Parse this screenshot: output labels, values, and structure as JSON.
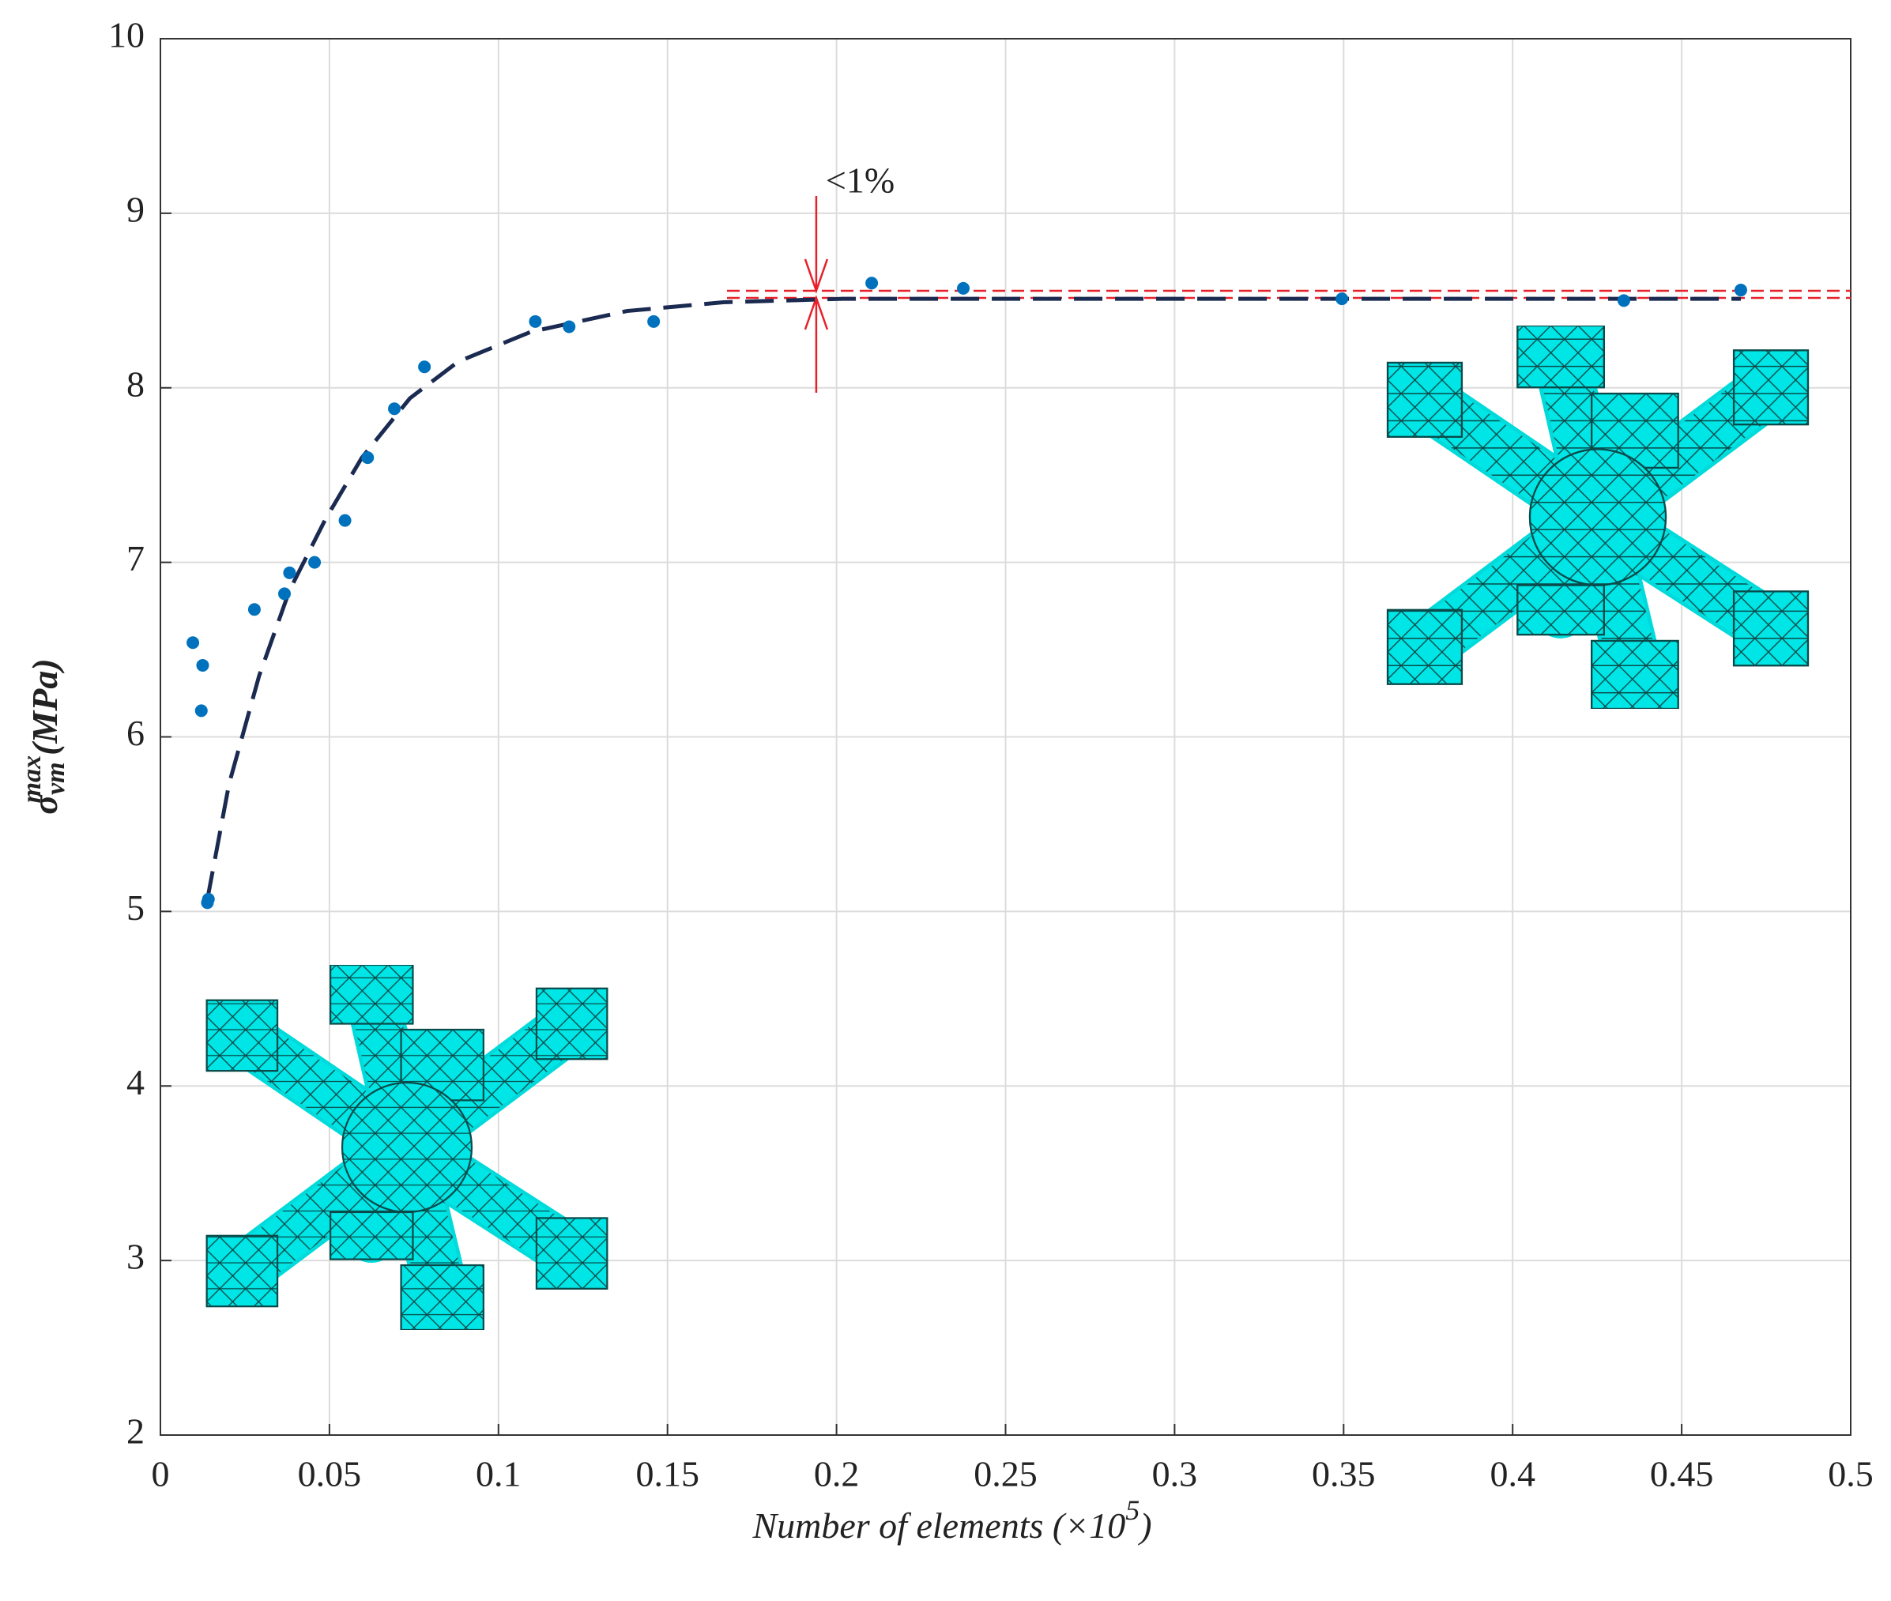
{
  "chart_data": {
    "type": "scatter",
    "x": [
      0.0096,
      0.0125,
      0.0121,
      0.0139,
      0.0142,
      0.0278,
      0.0367,
      0.0382,
      0.0456,
      0.0546,
      0.0613,
      0.0692,
      0.0781,
      0.1109,
      0.1209,
      0.1459,
      0.2104,
      0.2375,
      0.3495,
      0.4329,
      0.4675
    ],
    "values": [
      6.54,
      6.41,
      6.15,
      5.05,
      5.07,
      6.73,
      6.82,
      6.94,
      7.0,
      7.24,
      7.6,
      7.88,
      8.12,
      8.38,
      8.35,
      8.38,
      8.6,
      8.57,
      8.51,
      8.5,
      8.56
    ],
    "color": "#0072bd",
    "fit": {
      "x": [
        0.0139,
        0.0203,
        0.0292,
        0.0382,
        0.0489,
        0.0596,
        0.0738,
        0.0881,
        0.1095,
        0.138,
        0.1665,
        0.202,
        0.4675
      ],
      "values": [
        5.07,
        5.73,
        6.35,
        6.84,
        7.25,
        7.6,
        7.94,
        8.15,
        8.32,
        8.44,
        8.49,
        8.51,
        8.51
      ],
      "color": "#1a2a50"
    },
    "annotation": {
      "text": "<1%",
      "x": 0.194,
      "xstart": 0.1676,
      "band": [
        8.515,
        8.556
      ],
      "color": "#e8202a"
    },
    "xlabel": {
      "main": "Number of elements (×10",
      "sup": "5",
      "end": ")"
    },
    "ylabel": {
      "symbol": "σ",
      "sub": "vm",
      "sup": "max",
      "unit": "(MPa)"
    },
    "xlim": [
      0,
      0.5
    ],
    "ylim": [
      2,
      10
    ],
    "xticks": [
      0,
      0.05,
      0.1,
      0.15,
      0.2,
      0.25,
      0.3,
      0.35,
      0.4,
      0.45,
      0.5
    ],
    "yticks": [
      2,
      3,
      4,
      5,
      6,
      7,
      8,
      9,
      10
    ],
    "grid": true
  }
}
